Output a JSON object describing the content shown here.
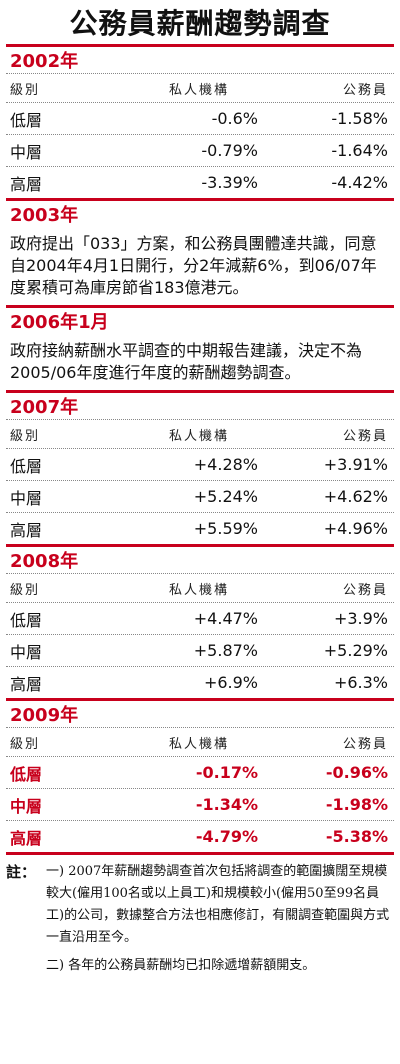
{
  "title": "公務員薪酬趨勢調查",
  "table_header": {
    "grade": "級別",
    "private": "私人機構",
    "civil": "公務員"
  },
  "sections": {
    "y2002": {
      "label": "2002年",
      "rows": [
        {
          "grade": "低層",
          "private": "-0.6%",
          "civil": "-1.58%"
        },
        {
          "grade": "中層",
          "private": "-0.79%",
          "civil": "-1.64%"
        },
        {
          "grade": "高層",
          "private": "-3.39%",
          "civil": "-4.42%"
        }
      ]
    },
    "y2003": {
      "label": "2003年",
      "text": "政府提出「033」方案，和公務員團體達共識，同意自2004年4月1日開行，分2年減薪6%，到06/07年度累積可為庫房節省183億港元。"
    },
    "y2006": {
      "label": "2006年1月",
      "text": "政府接納薪酬水平調查的中期報告建議，決定不為2005/06年度進行年度的薪酬趨勢調查。"
    },
    "y2007": {
      "label": "2007年",
      "rows": [
        {
          "grade": "低層",
          "private": "+4.28%",
          "civil": "+3.91%"
        },
        {
          "grade": "中層",
          "private": "+5.24%",
          "civil": "+4.62%"
        },
        {
          "grade": "高層",
          "private": "+5.59%",
          "civil": "+4.96%"
        }
      ]
    },
    "y2008": {
      "label": "2008年",
      "rows": [
        {
          "grade": "低層",
          "private": "+4.47%",
          "civil": "+3.9%"
        },
        {
          "grade": "中層",
          "private": "+5.87%",
          "civil": "+5.29%"
        },
        {
          "grade": "高層",
          "private": "+6.9%",
          "civil": "+6.3%"
        }
      ]
    },
    "y2009": {
      "label": "2009年",
      "rows": [
        {
          "grade": "低層",
          "private": "-0.17%",
          "civil": "-0.96%"
        },
        {
          "grade": "中層",
          "private": "-1.34%",
          "civil": "-1.98%"
        },
        {
          "grade": "高層",
          "private": "-4.79%",
          "civil": "-5.38%"
        }
      ]
    }
  },
  "notes": {
    "label": "註：",
    "items": [
      "一) 2007年薪酬趨勢調查首次包括將調查的範圍擴闊至規模較大(僱用100名或以上員工)和規模較小(僱用50至99名員工)的公司，數據整合方法也相應修訂，有關調查範圍與方式一直沿用至今。",
      "二) 各年的公務員薪酬均已扣除遞增薪額開支。"
    ]
  },
  "colors": {
    "accent": "#c8001c"
  }
}
